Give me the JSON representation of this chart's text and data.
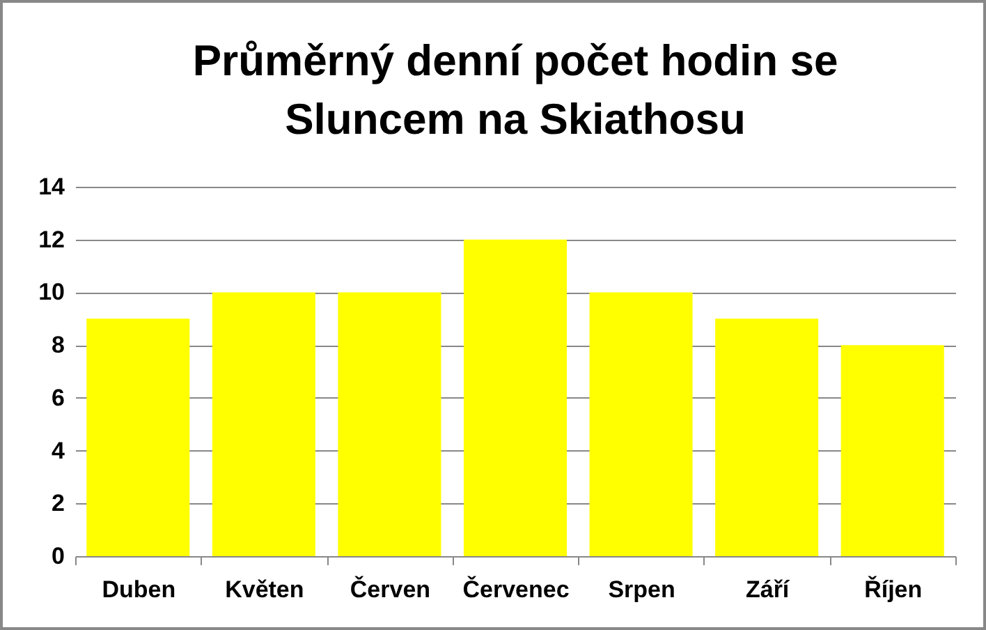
{
  "chart_data": {
    "type": "bar",
    "title": "Průměrný denní počet hodin se Sluncem na Skiathosu",
    "categories": [
      "Duben",
      "Květen",
      "Červen",
      "Červenec",
      "Srpen",
      "Září",
      "Říjen"
    ],
    "values": [
      9,
      10,
      10,
      12,
      10,
      9,
      8
    ],
    "color": "#ffff00",
    "ylim": [
      0,
      14
    ],
    "yticks": [
      0,
      2,
      4,
      6,
      8,
      10,
      12,
      14
    ],
    "grid": "y"
  }
}
